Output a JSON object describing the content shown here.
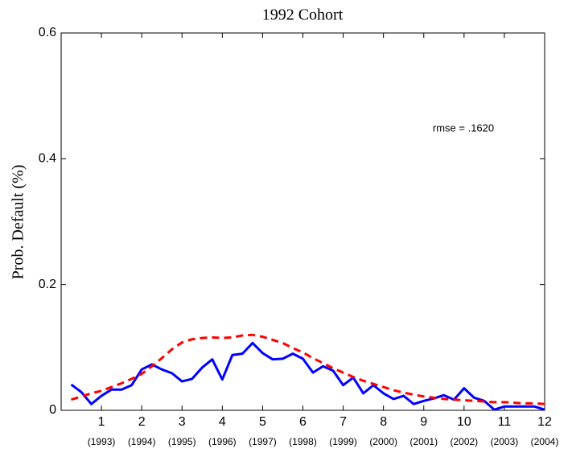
{
  "chart_data": {
    "type": "line",
    "title": "1992 Cohort",
    "y_label": "Prob. Default (%)",
    "annotation": "rmse = .1620",
    "x": [
      0.25,
      0.5,
      0.75,
      1,
      1.25,
      1.5,
      1.75,
      2,
      2.25,
      2.5,
      2.75,
      3,
      3.25,
      3.5,
      3.75,
      4,
      4.25,
      4.5,
      4.75,
      5,
      5.25,
      5.5,
      5.75,
      6,
      6.25,
      6.5,
      6.75,
      7,
      7.25,
      7.5,
      7.75,
      8,
      8.25,
      8.5,
      8.75,
      9,
      9.25,
      9.5,
      9.75,
      10,
      10.25,
      10.5,
      10.75,
      11,
      11.25,
      11.5,
      11.75,
      12
    ],
    "series": [
      {
        "color": "#0000ff",
        "style": "solid",
        "values": [
          0.041,
          0.029,
          0.01,
          0.023,
          0.033,
          0.033,
          0.04,
          0.065,
          0.073,
          0.065,
          0.059,
          0.046,
          0.05,
          0.068,
          0.081,
          0.049,
          0.088,
          0.09,
          0.107,
          0.091,
          0.081,
          0.082,
          0.09,
          0.082,
          0.06,
          0.07,
          0.063,
          0.04,
          0.052,
          0.027,
          0.04,
          0.027,
          0.018,
          0.023,
          0.01,
          0.015,
          0.019,
          0.024,
          0.017,
          0.035,
          0.02,
          0.015,
          0.001,
          0.006,
          0.006,
          0.006,
          0.006,
          0.001
        ]
      },
      {
        "color": "#ff0000",
        "style": "dashed",
        "values": [
          0.017,
          0.022,
          0.027,
          0.031,
          0.037,
          0.043,
          0.05,
          0.058,
          0.07,
          0.083,
          0.097,
          0.108,
          0.113,
          0.115,
          0.116,
          0.115,
          0.116,
          0.119,
          0.12,
          0.117,
          0.112,
          0.107,
          0.099,
          0.092,
          0.083,
          0.075,
          0.067,
          0.06,
          0.053,
          0.047,
          0.042,
          0.037,
          0.032,
          0.028,
          0.025,
          0.022,
          0.02,
          0.018,
          0.017,
          0.016,
          0.015,
          0.014,
          0.013,
          0.013,
          0.012,
          0.011,
          0.011,
          0.01
        ]
      }
    ],
    "xlim": [
      0,
      12
    ],
    "xticks": [
      1,
      2,
      3,
      4,
      5,
      6,
      7,
      8,
      9,
      10,
      11,
      12
    ],
    "xtick_sublabels": [
      "(1993)",
      "(1994)",
      "(1995)",
      "(1996)",
      "(1997)",
      "(1998)",
      "(1999)",
      "(2000)",
      "(2001)",
      "(2002)",
      "(2003)",
      "(2004)"
    ],
    "ylim": [
      0,
      0.6
    ],
    "yticks": [
      0,
      0.2,
      0.4,
      0.6
    ],
    "grid": false
  }
}
